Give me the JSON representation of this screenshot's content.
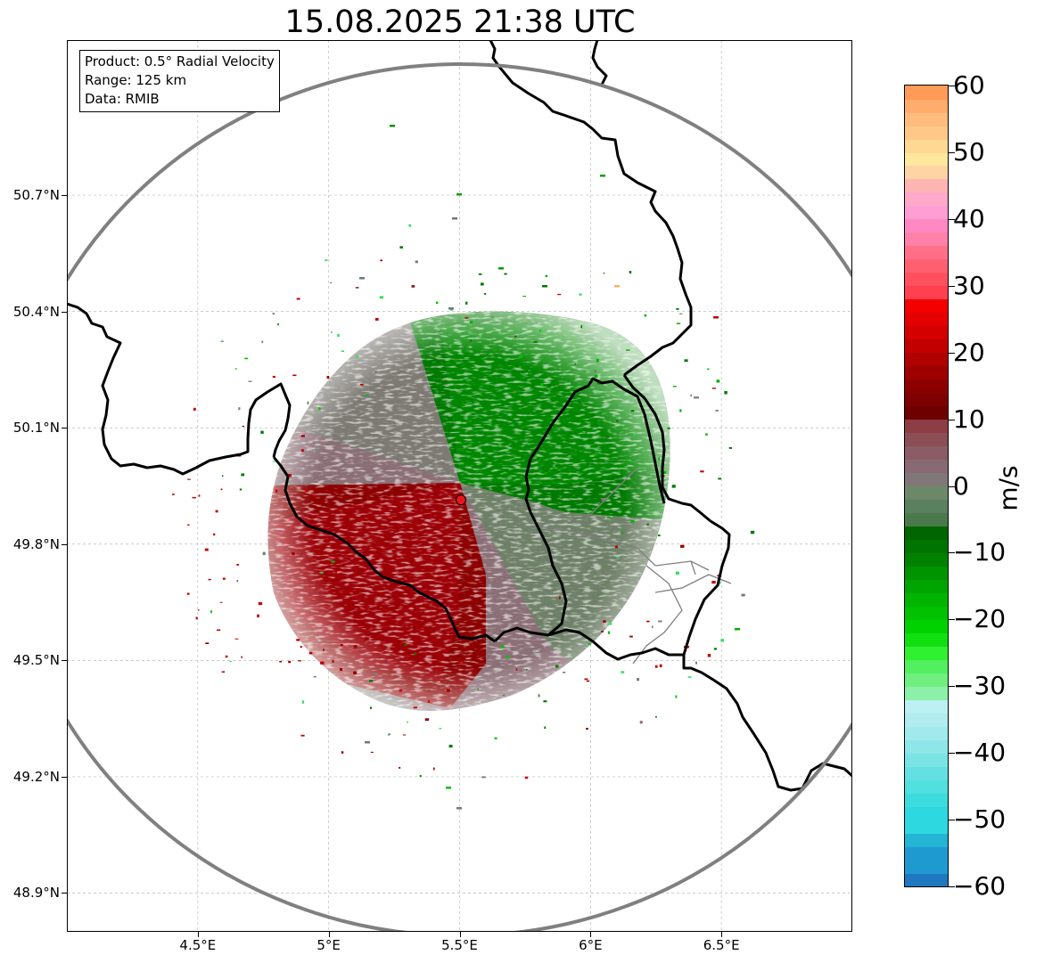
{
  "title": "15.08.2025 21:38 UTC",
  "info": {
    "product": "Product: 0.5° Radial Velocity",
    "range": "Range: 125 km",
    "data": "Data: RMIB"
  },
  "map": {
    "lon_range": [
      4.0,
      7.0
    ],
    "lat_range": [
      48.8,
      51.1
    ],
    "radar_site": {
      "lon": 5.505,
      "lat": 49.914
    },
    "range_ring_km": 125,
    "lat_ticks": [
      {
        "value": 48.9,
        "label": "48.9°N"
      },
      {
        "value": 49.2,
        "label": "49.2°N"
      },
      {
        "value": 49.5,
        "label": "49.5°N"
      },
      {
        "value": 49.8,
        "label": "49.8°N"
      },
      {
        "value": 50.1,
        "label": "50.1°N"
      },
      {
        "value": 50.4,
        "label": "50.4°N"
      },
      {
        "value": 50.7,
        "label": "50.7°N"
      }
    ],
    "lon_ticks": [
      {
        "value": 4.5,
        "label": "4.5°E"
      },
      {
        "value": 5.0,
        "label": "5°E"
      },
      {
        "value": 5.5,
        "label": "5.5°E"
      },
      {
        "value": 6.0,
        "label": "6°E"
      },
      {
        "value": 6.5,
        "label": "6.5°E"
      }
    ],
    "colors": {
      "ring": "#808080",
      "border": "#000000",
      "province_border": "#7f7f7f",
      "radar_marker": "#e8141c",
      "inbound_dark": "#007800",
      "outbound_dark": "#9a0000",
      "zero": "#7a7a70"
    }
  },
  "colorbar": {
    "unit": "m/s",
    "min": -60,
    "max": 60,
    "ticks": [
      60,
      50,
      40,
      30,
      20,
      10,
      0,
      -10,
      -20,
      -30,
      -40,
      -50,
      -60
    ],
    "tick_labels": [
      "60",
      "50",
      "40",
      "30",
      "20",
      "10",
      "0",
      "−10",
      "−20",
      "−30",
      "−40",
      "−50",
      "−60"
    ],
    "stops": [
      {
        "from": -60,
        "to": -58,
        "color": "#1f78c0"
      },
      {
        "from": -58,
        "to": -54,
        "color": "#1f9ad0"
      },
      {
        "from": -54,
        "to": -52,
        "color": "#24b4d4"
      },
      {
        "from": -52,
        "to": -48,
        "color": "#2ed8e0"
      },
      {
        "from": -48,
        "to": -46,
        "color": "#3cdcdc"
      },
      {
        "from": -46,
        "to": -44,
        "color": "#50e0e0"
      },
      {
        "from": -44,
        "to": -42,
        "color": "#64e0e2"
      },
      {
        "from": -42,
        "to": -40,
        "color": "#7ae4e4"
      },
      {
        "from": -40,
        "to": -38,
        "color": "#8ee6e8"
      },
      {
        "from": -38,
        "to": -36,
        "color": "#a0eaec"
      },
      {
        "from": -36,
        "to": -34,
        "color": "#b0ecf0"
      },
      {
        "from": -34,
        "to": -32,
        "color": "#bcf0f2"
      },
      {
        "from": -32,
        "to": -30,
        "color": "#8cf0a8"
      },
      {
        "from": -30,
        "to": -28,
        "color": "#70ee80"
      },
      {
        "from": -28,
        "to": -26,
        "color": "#52f060"
      },
      {
        "from": -26,
        "to": -24,
        "color": "#30f030"
      },
      {
        "from": -24,
        "to": -22,
        "color": "#10e010"
      },
      {
        "from": -22,
        "to": -20,
        "color": "#00d200"
      },
      {
        "from": -20,
        "to": -18,
        "color": "#00c200"
      },
      {
        "from": -18,
        "to": -16,
        "color": "#00b400"
      },
      {
        "from": -16,
        "to": -14,
        "color": "#00a400"
      },
      {
        "from": -14,
        "to": -12,
        "color": "#009400"
      },
      {
        "from": -12,
        "to": -10,
        "color": "#008200"
      },
      {
        "from": -10,
        "to": -8,
        "color": "#007400"
      },
      {
        "from": -8,
        "to": -6,
        "color": "#006600"
      },
      {
        "from": -6,
        "to": -4,
        "color": "#4a7a4c"
      },
      {
        "from": -4,
        "to": -2,
        "color": "#5a8060"
      },
      {
        "from": -2,
        "to": 0,
        "color": "#6c8868"
      },
      {
        "from": 0,
        "to": 2,
        "color": "#807878"
      },
      {
        "from": 2,
        "to": 4,
        "color": "#876a74"
      },
      {
        "from": 4,
        "to": 6,
        "color": "#8a5c66"
      },
      {
        "from": 6,
        "to": 8,
        "color": "#8a4e54"
      },
      {
        "from": 8,
        "to": 10,
        "color": "#8c3e44"
      },
      {
        "from": 10,
        "to": 12,
        "color": "#6e0000"
      },
      {
        "from": 12,
        "to": 14,
        "color": "#7e0000"
      },
      {
        "from": 14,
        "to": 16,
        "color": "#8e0000"
      },
      {
        "from": 16,
        "to": 18,
        "color": "#9e0000"
      },
      {
        "from": 18,
        "to": 20,
        "color": "#b00000"
      },
      {
        "from": 20,
        "to": 22,
        "color": "#c20000"
      },
      {
        "from": 22,
        "to": 24,
        "color": "#d40000"
      },
      {
        "from": 24,
        "to": 26,
        "color": "#e40000"
      },
      {
        "from": 26,
        "to": 28,
        "color": "#f40000"
      },
      {
        "from": 28,
        "to": 30,
        "color": "#ff4050"
      },
      {
        "from": 30,
        "to": 32,
        "color": "#ff5060"
      },
      {
        "from": 32,
        "to": 34,
        "color": "#ff6070"
      },
      {
        "from": 34,
        "to": 36,
        "color": "#ff7088"
      },
      {
        "from": 36,
        "to": 38,
        "color": "#ff80a8"
      },
      {
        "from": 38,
        "to": 40,
        "color": "#ff88c4"
      },
      {
        "from": 40,
        "to": 42,
        "color": "#ff9ed4"
      },
      {
        "from": 42,
        "to": 44,
        "color": "#ffa8c8"
      },
      {
        "from": 44,
        "to": 46,
        "color": "#ffb4b4"
      },
      {
        "from": 46,
        "to": 48,
        "color": "#ffd4a4"
      },
      {
        "from": 48,
        "to": 50,
        "color": "#ffe89e"
      },
      {
        "from": 50,
        "to": 52,
        "color": "#ffd894"
      },
      {
        "from": 52,
        "to": 54,
        "color": "#ffc888"
      },
      {
        "from": 54,
        "to": 56,
        "color": "#ffbc7c"
      },
      {
        "from": 56,
        "to": 58,
        "color": "#ffac6c"
      },
      {
        "from": 58,
        "to": 60,
        "color": "#ff9a58"
      }
    ]
  }
}
